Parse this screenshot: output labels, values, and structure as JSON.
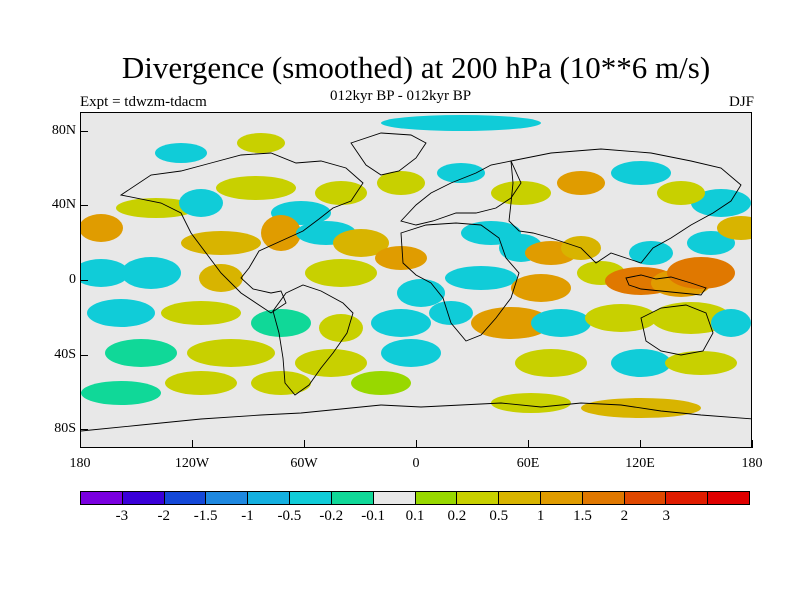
{
  "header": {
    "title": "Divergence (smoothed) at 200 hPa (10**6 m/s)",
    "subtitle": "012kyr BP - 012kyr BP",
    "experiment": "Expt = tdwzm-tdacm",
    "season": "DJF"
  },
  "map": {
    "projection": "cylindrical-equidistant",
    "lon_range": [
      -180,
      180
    ],
    "lat_range": [
      -90,
      90
    ],
    "background_color": "#e8e8e8",
    "coastline_color": "#000000",
    "lat_labels": [
      "80N",
      "40N",
      "0",
      "40S",
      "80S"
    ],
    "lat_values": [
      80,
      40,
      0,
      -40,
      -80
    ],
    "lon_labels": [
      "180",
      "120W",
      "60W",
      "0",
      "60E",
      "120E",
      "180"
    ],
    "lon_values": [
      -180,
      -120,
      -60,
      0,
      60,
      120,
      180
    ]
  },
  "colorbar": {
    "colors": [
      "#7a00e0",
      "#3a00d8",
      "#1448d8",
      "#1e88e0",
      "#14b0e0",
      "#10ccd8",
      "#10d898",
      "#e8e8e8",
      "#98d800",
      "#c8d000",
      "#d8b400",
      "#e09c00",
      "#e07800",
      "#e04800",
      "#e01c00",
      "#e00000"
    ],
    "labels": [
      "-3",
      "-2",
      "-1.5",
      "-1",
      "-0.5",
      "-0.2",
      "-0.1",
      "0.1",
      "0.2",
      "0.5",
      "1",
      "1.5",
      "2",
      "3"
    ]
  }
}
